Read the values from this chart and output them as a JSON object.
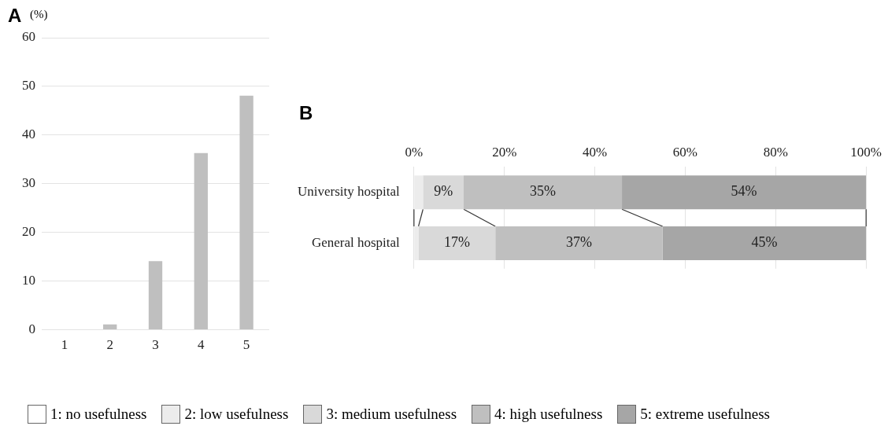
{
  "chart_data": [
    {
      "type": "bar",
      "title": "A",
      "ylabel": "(%)",
      "categories": [
        "1",
        "2",
        "3",
        "4",
        "5"
      ],
      "values": [
        0,
        1.1,
        14.1,
        36.3,
        48.1
      ],
      "color": "#bfbfbf",
      "ylim": [
        0,
        60
      ],
      "yticks": [
        0,
        10,
        20,
        30,
        40,
        50,
        60
      ],
      "grid": "y"
    },
    {
      "type": "bar",
      "title": "B",
      "orientation": "horizontal",
      "stacked": true,
      "categories": [
        "University hospital",
        "General hospital"
      ],
      "xlim": [
        0,
        100
      ],
      "xticks": [
        {
          "value": 0,
          "label": "0%"
        },
        {
          "value": 20,
          "label": "20%"
        },
        {
          "value": 40,
          "label": "40%"
        },
        {
          "value": 60,
          "label": "60%"
        },
        {
          "value": 80,
          "label": "80%"
        },
        {
          "value": 100,
          "label": "100%"
        }
      ],
      "grid": "x",
      "legend": "bottom",
      "series": [
        {
          "name": "1: no usefulness",
          "values": [
            0,
            0
          ]
        },
        {
          "name": "2: low usefulness",
          "color": "#ececec",
          "values": [
            2,
            1
          ]
        },
        {
          "name": "3: medium usefulness",
          "color": "#d9d9d9",
          "values": [
            9,
            17
          ],
          "value_labels": [
            "9%",
            "17%"
          ]
        },
        {
          "name": "4: high usefulness",
          "color": "#bfbfbf",
          "values": [
            35,
            37
          ],
          "value_labels": [
            "35%",
            "37%"
          ]
        },
        {
          "name": "5: extreme usefulness",
          "color": "#a6a6a6",
          "values": [
            54,
            45
          ],
          "value_labels": [
            "54%",
            "45%"
          ]
        }
      ]
    }
  ]
}
